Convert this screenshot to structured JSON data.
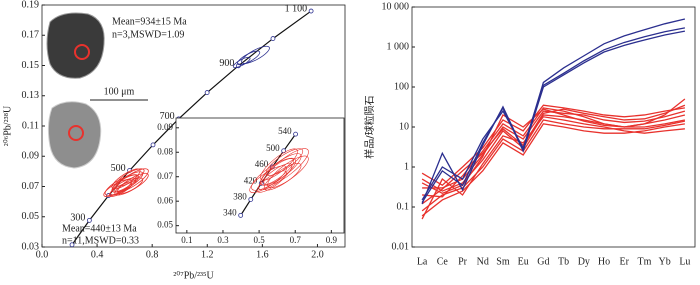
{
  "chart_data": [
    {
      "type": "concordia",
      "xlabel": "²⁰⁷Pb/²³⁵U",
      "ylabel": "²⁰⁶Pb/²³⁸U",
      "xlim": [
        0,
        2.2
      ],
      "xticks": [
        {
          "value": 0,
          "label": "0.0"
        },
        0.4,
        0.8,
        1.2,
        1.6,
        {
          "value": 2,
          "label": "2.0"
        }
      ],
      "ylim": [
        0.03,
        0.19
      ],
      "yticks": [
        0.03,
        0.05,
        0.07,
        0.09,
        0.11,
        0.13,
        0.15,
        0.17,
        0.19
      ],
      "concordia": {
        "x": [
          0.218,
          0.344,
          0.483,
          0.636,
          0.806,
          0.992,
          1.199,
          1.426,
          1.677,
          1.954
        ],
        "y": [
          0.0315,
          0.0476,
          0.064,
          0.0806,
          0.0975,
          0.1147,
          0.1321,
          0.1498,
          0.1678,
          0.186
        ],
        "labels": [
          null,
          "300",
          null,
          "500",
          null,
          "700",
          null,
          "900",
          null,
          "1 100"
        ]
      },
      "series": [
        {
          "color": "#e8322d",
          "x": [
            0.55,
            0.58,
            0.6,
            0.62,
            0.63,
            0.65,
            0.57,
            0.61,
            0.66,
            0.59,
            0.64
          ],
          "y": [
            0.069,
            0.071,
            0.072,
            0.073,
            0.07,
            0.074,
            0.068,
            0.075,
            0.072,
            0.07,
            0.076
          ],
          "x_err": [
            0.1,
            0.12,
            0.09,
            0.11,
            0.1,
            0.12,
            0.08,
            0.1,
            0.11,
            0.09,
            0.1
          ],
          "y_err": [
            0.005,
            0.006,
            0.005,
            0.006,
            0.005,
            0.007,
            0.004,
            0.006,
            0.006,
            0.005,
            0.005
          ]
        },
        {
          "color": "#2b2f8f",
          "x": [
            1.5,
            1.55,
            1.45
          ],
          "y": [
            0.155,
            0.157,
            0.152
          ],
          "x_err": [
            0.08,
            0.1,
            0.06
          ],
          "y_err": [
            0.004,
            0.005,
            0.003
          ]
        }
      ],
      "annotations": [
        "Mean=934±15 Ma",
        "n=3,MSWD=1.09",
        "100 μm",
        "Mean=440±13 Ma",
        "n=11,MSWD=0.33"
      ],
      "inset": {
        "xlim": [
          0.04,
          0.97
        ],
        "xticks": [
          0.1,
          0.3,
          0.5,
          0.7,
          0.9
        ],
        "ylim": [
          0.047,
          0.094
        ],
        "yticks": [
          0.05,
          0.06,
          0.07,
          0.08,
          0.09
        ],
        "concordia": {
          "x": [
            0.398,
            0.454,
            0.512,
            0.573,
            0.636,
            0.702
          ],
          "y": [
            0.0542,
            0.0607,
            0.0673,
            0.074,
            0.0806,
            0.0874
          ],
          "labels": [
            "340",
            "380",
            "420",
            "460",
            "500",
            "540"
          ]
        }
      }
    },
    {
      "type": "line",
      "log_y": true,
      "ylabel": "样品/球粒陨石",
      "ylim": [
        0.01,
        10000
      ],
      "yticks": [
        0.01,
        0.1,
        1,
        10,
        100,
        {
          "value": 1000,
          "label": "1 000"
        },
        {
          "value": 10000,
          "label": "10 000"
        }
      ],
      "categories": [
        "La",
        "Ce",
        "Pr",
        "Nd",
        "Sm",
        "Eu",
        "Gd",
        "Tb",
        "Dy",
        "Ho",
        "Er",
        "Tm",
        "Yb",
        "Lu"
      ],
      "series": [
        {
          "color": "#e8322d",
          "values": [
            0.5,
            0.25,
            0.4,
            1.5,
            8,
            3,
            20,
            18,
            15,
            12,
            10,
            10,
            12,
            15
          ]
        },
        {
          "color": "#e8322d",
          "values": [
            0.08,
            0.2,
            0.3,
            1.0,
            5,
            2.5,
            15,
            12,
            10,
            9,
            9,
            9,
            11,
            14
          ]
        },
        {
          "color": "#e8322d",
          "values": [
            0.7,
            0.35,
            1.0,
            3,
            15,
            8,
            35,
            30,
            25,
            20,
            18,
            20,
            25,
            30
          ]
        },
        {
          "color": "#e8322d",
          "values": [
            0.06,
            0.15,
            0.25,
            0.8,
            4,
            2,
            12,
            10,
            8,
            7,
            7,
            8,
            10,
            12
          ]
        },
        {
          "color": "#e8322d",
          "values": [
            0.3,
            0.3,
            0.5,
            2,
            10,
            5,
            25,
            22,
            20,
            15,
            13,
            14,
            18,
            25
          ]
        },
        {
          "color": "#e8322d",
          "values": [
            0.2,
            0.18,
            0.6,
            2.5,
            12,
            6,
            30,
            25,
            18,
            12,
            10,
            12,
            15,
            20
          ]
        },
        {
          "color": "#e8322d",
          "values": [
            0.05,
            0.5,
            0.2,
            1.2,
            6,
            4,
            18,
            15,
            12,
            10,
            8,
            7,
            8,
            9
          ]
        },
        {
          "color": "#e8322d",
          "values": [
            0.4,
            0.22,
            0.35,
            1.8,
            20,
            10,
            28,
            20,
            14,
            11,
            10,
            12,
            20,
            50
          ]
        },
        {
          "color": "#e8322d",
          "values": [
            0.12,
            0.28,
            0.8,
            2.2,
            9,
            3.5,
            22,
            28,
            22,
            18,
            15,
            16,
            22,
            35
          ]
        },
        {
          "color": "#2b2f8f",
          "values": [
            0.12,
            2.2,
            0.27,
            3.5,
            32,
            2.7,
            130,
            300,
            600,
            1200,
            1900,
            2700,
            3800,
            5000
          ]
        },
        {
          "color": "#2b2f8f",
          "values": [
            0.15,
            1.0,
            0.5,
            5,
            25,
            3,
            110,
            220,
            450,
            850,
            1300,
            1800,
            2400,
            3000
          ]
        },
        {
          "color": "#2b2f8f",
          "values": [
            0.13,
            0.8,
            0.35,
            4,
            30,
            2.5,
            100,
            200,
            400,
            750,
            1100,
            1500,
            2000,
            2500
          ]
        }
      ]
    }
  ]
}
